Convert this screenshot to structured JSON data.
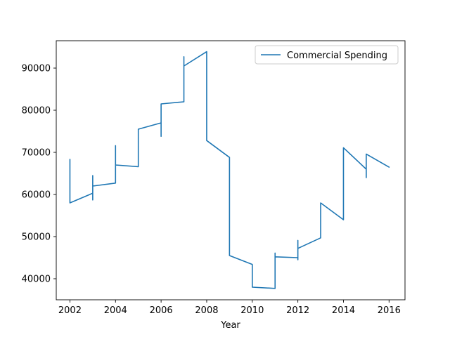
{
  "chart_data": {
    "type": "line",
    "title": "",
    "xlabel": "Year",
    "ylabel": "",
    "xlim": [
      2001.4,
      2016.7
    ],
    "ylim": [
      35000,
      96500
    ],
    "xticks": [
      2002,
      2004,
      2006,
      2008,
      2010,
      2012,
      2014,
      2016
    ],
    "yticks": [
      40000,
      50000,
      60000,
      70000,
      80000,
      90000
    ],
    "grid": false,
    "legend": {
      "position": "top-right"
    },
    "series": [
      {
        "name": "Commercial Spending",
        "color": "#1f77b4",
        "x": [
          2002,
          2002,
          2003,
          2003,
          2003,
          2003,
          2003,
          2004,
          2004,
          2004,
          2005,
          2005,
          2006,
          2006,
          2006,
          2006,
          2007,
          2007,
          2007,
          2007,
          2008,
          2008,
          2008,
          2009,
          2009,
          2010,
          2010,
          2011,
          2011,
          2011,
          2011,
          2012,
          2012,
          2012,
          2012,
          2013,
          2013,
          2014,
          2014,
          2015,
          2015,
          2015,
          2016
        ],
        "y": [
          68300,
          58000,
          60300,
          64500,
          58700,
          61800,
          62000,
          62700,
          71600,
          67000,
          66600,
          75500,
          77000,
          73800,
          76500,
          81500,
          82000,
          92700,
          89500,
          90500,
          93900,
          73000,
          72800,
          68800,
          45500,
          43400,
          38000,
          37700,
          46100,
          45200,
          45200,
          45000,
          49100,
          44500,
          47200,
          49700,
          58000,
          54000,
          71100,
          66000,
          64000,
          69600,
          66500
        ]
      }
    ]
  }
}
